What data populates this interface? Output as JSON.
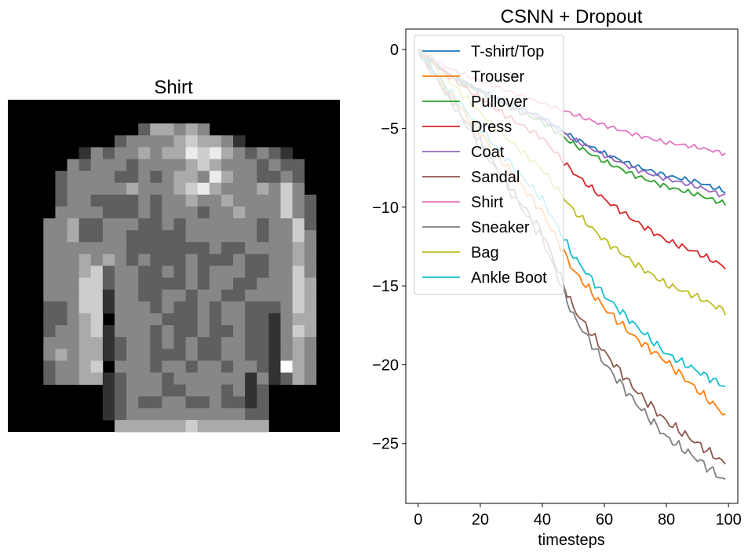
{
  "image_panel": {
    "title": "Shirt",
    "grid_size": 28,
    "pixels": [
      "0000000000000000000000000000",
      "0000000000000000000000000000",
      "0000000000024434300000000000",
      "0000000002333345443100000000",
      "0000001323343446564323210000",
      "0000032333233334543332322000",
      "0000233332232344364332232000",
      "0000233333433345643334353000",
      "0000233222232334334333353200",
      "0000333322232333233433353200",
      "0003342233322323333332335200",
      "0003342233222223333332335300",
      "0003333333222222232233334300",
      "0003334343232223222322334300",
      "0003334523322323233322335300",
      "0003335523322223233223335400",
      "0003335513322332332233335400",
      "0002235513332322323322235400",
      "0002234503333222323322134400",
      "0002334513332322322322135400",
      "0003334412332323223322134300",
      "0003434412332223223322134300",
      "0002334503332332332332184300",
      "0002334412333233333313124300",
      "0000000012333223332312000000",
      "0000000012322332232212000000",
      "0000000012333333333322000000",
      "0000000004444445444444000000"
    ]
  },
  "chart_data": {
    "type": "line",
    "title": "CSNN + Dropout",
    "xlabel": "timesteps",
    "ylabel": "",
    "xlim": [
      -4,
      103
    ],
    "ylim": [
      -28.8,
      1.3
    ],
    "xticks": [
      0,
      20,
      40,
      60,
      80,
      100
    ],
    "yticks": [
      0,
      -5,
      -10,
      -15,
      -20,
      -25
    ],
    "xtick_labels": [
      "0",
      "20",
      "40",
      "60",
      "80",
      "100"
    ],
    "ytick_labels": [
      "0",
      "−5",
      "−10",
      "−15",
      "−20",
      "−25"
    ],
    "grid": false,
    "legend_position": "top-left",
    "x": [
      0,
      10,
      20,
      30,
      40,
      50,
      60,
      70,
      80,
      90,
      99
    ],
    "series": [
      {
        "name": "T-shirt/Top",
        "color": "#1f77b4",
        "values": [
          0,
          -1.6,
          -2.6,
          -3.5,
          -4.3,
          -5.6,
          -6.6,
          -7.4,
          -8.0,
          -8.4,
          -9.0
        ]
      },
      {
        "name": "Trouser",
        "color": "#ff7f0e",
        "values": [
          0,
          -2.8,
          -5.3,
          -7.8,
          -10.3,
          -14.0,
          -16.4,
          -18.3,
          -19.8,
          -21.6,
          -23.2
        ]
      },
      {
        "name": "Pullover",
        "color": "#2ca02c",
        "values": [
          0,
          -1.6,
          -2.7,
          -3.7,
          -4.6,
          -6.0,
          -7.1,
          -8.0,
          -8.7,
          -9.2,
          -9.8
        ]
      },
      {
        "name": "Dress",
        "color": "#d62728",
        "values": [
          0,
          -1.7,
          -3.1,
          -4.4,
          -5.6,
          -7.8,
          -9.5,
          -10.9,
          -12.1,
          -12.9,
          -13.8
        ]
      },
      {
        "name": "Coat",
        "color": "#9467bd",
        "values": [
          0,
          -1.6,
          -2.6,
          -3.6,
          -4.4,
          -5.7,
          -6.7,
          -7.6,
          -8.2,
          -8.7,
          -9.3
        ]
      },
      {
        "name": "Sandal",
        "color": "#8c564b",
        "values": [
          0,
          -3.0,
          -5.9,
          -8.9,
          -11.6,
          -16.4,
          -19.2,
          -21.6,
          -23.6,
          -25.0,
          -26.3
        ]
      },
      {
        "name": "Shirt",
        "color": "#e377c2",
        "values": [
          0,
          -1.2,
          -2.0,
          -2.7,
          -3.4,
          -4.1,
          -4.8,
          -5.4,
          -5.9,
          -6.2,
          -6.6
        ]
      },
      {
        "name": "Sneaker",
        "color": "#7f7f7f",
        "values": [
          0,
          -3.1,
          -6.1,
          -9.1,
          -12.0,
          -16.9,
          -19.9,
          -22.4,
          -24.6,
          -26.0,
          -27.4
        ]
      },
      {
        "name": "Bag",
        "color": "#bcbd22",
        "values": [
          0,
          -2.0,
          -4.0,
          -5.9,
          -7.6,
          -10.2,
          -12.1,
          -13.6,
          -14.9,
          -15.7,
          -16.6
        ]
      },
      {
        "name": "Ankle Boot",
        "color": "#17becf",
        "values": [
          0,
          -2.6,
          -5.0,
          -7.3,
          -9.5,
          -13.1,
          -15.6,
          -17.5,
          -19.3,
          -20.4,
          -21.4
        ]
      }
    ]
  }
}
